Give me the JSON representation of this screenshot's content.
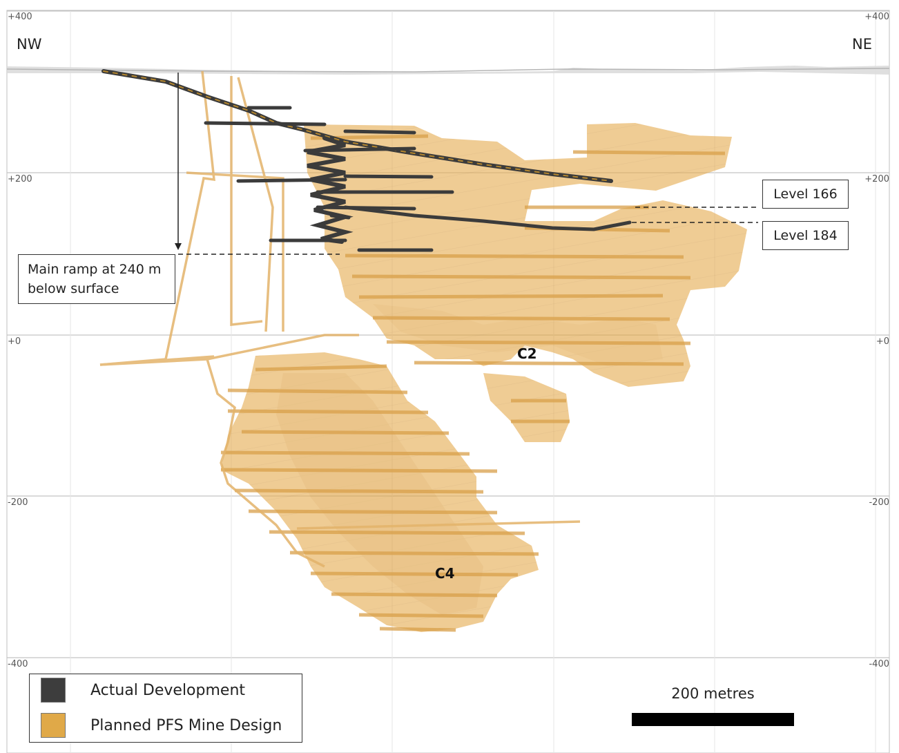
{
  "section": {
    "direction_left": "NW",
    "direction_right": "NE",
    "elevation_labels": [
      "+400",
      "+200",
      "+0",
      "-200",
      "-400"
    ]
  },
  "annotations": {
    "level_166": "Level 166",
    "level_184": "Level 184",
    "main_ramp_line1": "Main ramp at 240 m",
    "main_ramp_line2": "below surface"
  },
  "zones": {
    "c2": "C2",
    "c4": "C4"
  },
  "legend": {
    "items": [
      {
        "label": "Actual Development",
        "color": "#3d3d3d"
      },
      {
        "label": "Planned PFS Mine Design",
        "color": "#e0a948"
      }
    ]
  },
  "scale_bar": {
    "label": "200 metres",
    "color": "#000000"
  },
  "colors": {
    "planned": "#e7b25c",
    "planned_dark": "#d69a3a",
    "actual": "#3a3a3a",
    "grid": "#c8c8c8",
    "surface": "#cfcfcf"
  }
}
